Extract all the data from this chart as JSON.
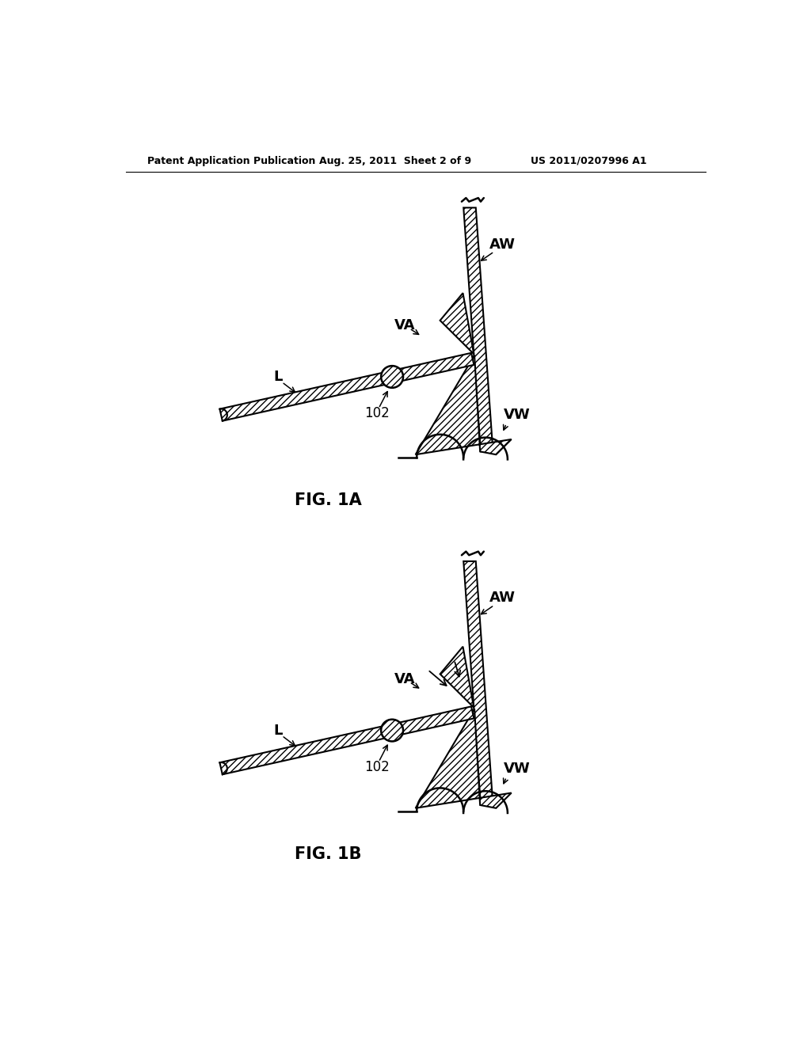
{
  "bg_color": "#ffffff",
  "line_color": "#000000",
  "fig_width": 10.24,
  "fig_height": 13.2,
  "header_left": "Patent Application Publication",
  "header_mid": "Aug. 25, 2011  Sheet 2 of 9",
  "header_right": "US 2011/0207996 A1",
  "fig1a_label": "FIG. 1A",
  "fig1b_label": "FIG. 1B",
  "label_AW": "AW",
  "label_VA": "VA",
  "label_VW": "VW",
  "label_L": "L",
  "label_102": "102"
}
